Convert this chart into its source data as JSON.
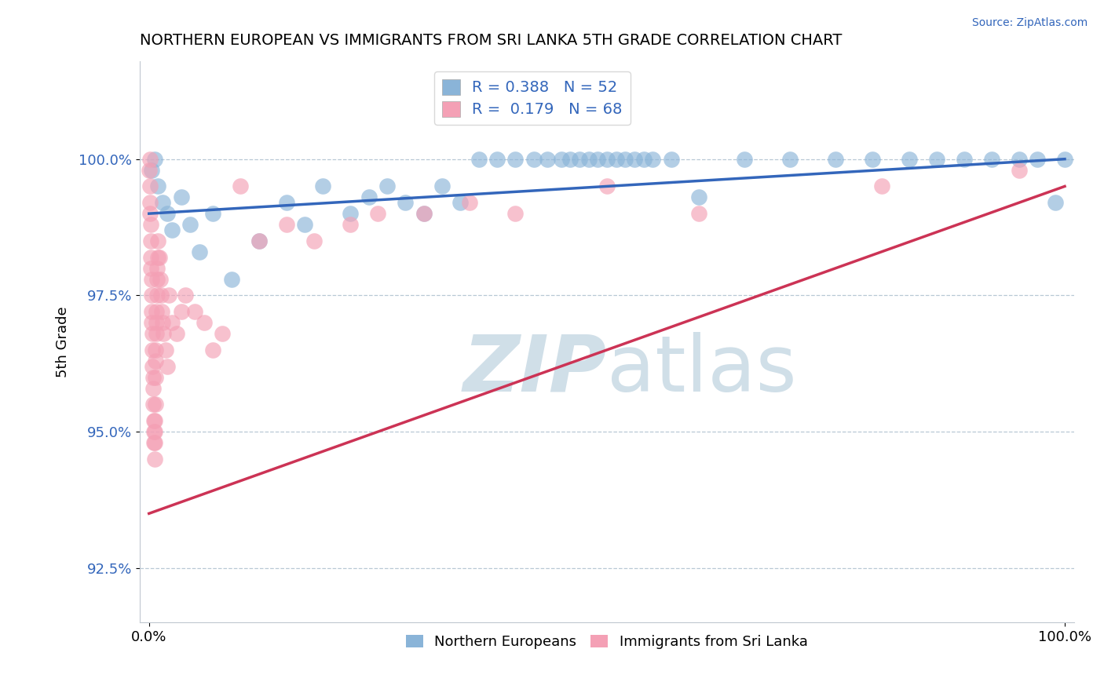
{
  "title": "NORTHERN EUROPEAN VS IMMIGRANTS FROM SRI LANKA 5TH GRADE CORRELATION CHART",
  "source": "Source: ZipAtlas.com",
  "ylabel": "5th Grade",
  "xlabel": "",
  "xlim": [
    -1.0,
    101.0
  ],
  "ylim": [
    91.5,
    101.8
  ],
  "yticks": [
    92.5,
    95.0,
    97.5,
    100.0
  ],
  "xticks": [
    0.0,
    100.0
  ],
  "xticklabels": [
    "0.0%",
    "100.0%"
  ],
  "yticklabels": [
    "92.5%",
    "95.0%",
    "97.5%",
    "100.0%"
  ],
  "blue_R": 0.388,
  "blue_N": 52,
  "pink_R": 0.179,
  "pink_N": 68,
  "blue_color": "#8ab4d8",
  "pink_color": "#f4a0b5",
  "blue_line_color": "#3366bb",
  "pink_line_color": "#cc3355",
  "watermark_color": "#d0dfe8",
  "legend_label_blue": "Northern Europeans",
  "legend_label_pink": "Immigrants from Sri Lanka",
  "blue_x": [
    0.3,
    0.6,
    1.0,
    1.5,
    2.0,
    2.5,
    3.5,
    4.5,
    5.5,
    7.0,
    9.0,
    12.0,
    15.0,
    17.0,
    19.0,
    22.0,
    24.0,
    26.0,
    28.0,
    30.0,
    32.0,
    34.0,
    36.0,
    38.0,
    40.0,
    42.0,
    43.5,
    45.0,
    46.0,
    47.0,
    48.0,
    49.0,
    50.0,
    51.0,
    52.0,
    53.0,
    54.0,
    55.0,
    57.0,
    60.0,
    65.0,
    70.0,
    75.0,
    79.0,
    83.0,
    86.0,
    89.0,
    92.0,
    95.0,
    97.0,
    99.0,
    100.0
  ],
  "blue_y": [
    99.8,
    100.0,
    99.5,
    99.2,
    99.0,
    98.7,
    99.3,
    98.8,
    98.3,
    99.0,
    97.8,
    98.5,
    99.2,
    98.8,
    99.5,
    99.0,
    99.3,
    99.5,
    99.2,
    99.0,
    99.5,
    99.2,
    100.0,
    100.0,
    100.0,
    100.0,
    100.0,
    100.0,
    100.0,
    100.0,
    100.0,
    100.0,
    100.0,
    100.0,
    100.0,
    100.0,
    100.0,
    100.0,
    100.0,
    99.3,
    100.0,
    100.0,
    100.0,
    100.0,
    100.0,
    100.0,
    100.0,
    100.0,
    100.0,
    100.0,
    99.2,
    100.0
  ],
  "pink_x": [
    0.05,
    0.08,
    0.1,
    0.12,
    0.14,
    0.16,
    0.18,
    0.2,
    0.22,
    0.25,
    0.28,
    0.3,
    0.32,
    0.35,
    0.38,
    0.4,
    0.42,
    0.45,
    0.48,
    0.5,
    0.52,
    0.55,
    0.58,
    0.6,
    0.62,
    0.65,
    0.68,
    0.7,
    0.72,
    0.75,
    0.78,
    0.8,
    0.82,
    0.85,
    0.88,
    0.9,
    0.95,
    1.0,
    1.1,
    1.2,
    1.3,
    1.4,
    1.5,
    1.6,
    1.8,
    2.0,
    2.2,
    2.5,
    3.0,
    3.5,
    4.0,
    5.0,
    6.0,
    7.0,
    8.0,
    10.0,
    12.0,
    15.0,
    18.0,
    22.0,
    25.0,
    30.0,
    35.0,
    40.0,
    50.0,
    60.0,
    80.0,
    95.0
  ],
  "pink_y": [
    99.8,
    100.0,
    99.5,
    99.2,
    99.0,
    98.8,
    98.5,
    98.2,
    98.0,
    97.8,
    97.5,
    97.2,
    97.0,
    96.8,
    96.5,
    96.2,
    96.0,
    95.8,
    95.5,
    95.2,
    95.0,
    94.8,
    94.5,
    94.8,
    95.0,
    95.2,
    95.5,
    96.0,
    96.3,
    96.5,
    96.8,
    97.0,
    97.2,
    97.5,
    97.8,
    98.0,
    98.2,
    98.5,
    98.2,
    97.8,
    97.5,
    97.2,
    97.0,
    96.8,
    96.5,
    96.2,
    97.5,
    97.0,
    96.8,
    97.2,
    97.5,
    97.2,
    97.0,
    96.5,
    96.8,
    99.5,
    98.5,
    98.8,
    98.5,
    98.8,
    99.0,
    99.0,
    99.2,
    99.0,
    99.5,
    99.0,
    99.5,
    99.8
  ],
  "blue_line_x0": 0.0,
  "blue_line_y0": 99.0,
  "blue_line_x1": 100.0,
  "blue_line_y1": 100.0,
  "pink_line_x0": 0.0,
  "pink_line_y0": 93.5,
  "pink_line_x1": 100.0,
  "pink_line_y1": 99.5
}
